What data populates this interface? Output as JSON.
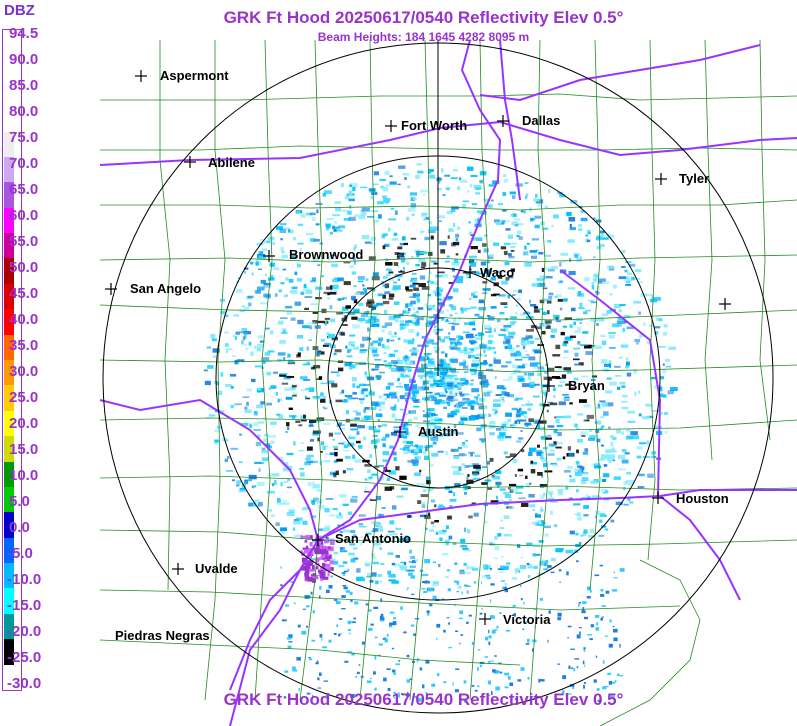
{
  "header": {
    "title": "GRK Ft Hood 20250617/0540 Reflectivity Elev 0.5°",
    "subtitle": "Beam Heights: 184 1645 4282 8095 m",
    "footer_title": "GRK Ft Hood 20250617/0540 Reflectivity Elev 0.5°"
  },
  "legend": {
    "unit": "DBZ",
    "ticks": [
      "94.5",
      "90.0",
      "85.0",
      "80.0",
      "75.0",
      "70.0",
      "65.0",
      "60.0",
      "55.0",
      "50.0",
      "45.0",
      "40.0",
      "35.0",
      "30.0",
      "25.0",
      "20.0",
      "15.0",
      "10.0",
      "5.0",
      "0.0",
      "-5.0",
      "-10.0",
      "-15.0",
      "-20.0",
      "-25.0",
      "-30.0"
    ],
    "colors": [
      "#ffffff",
      "#ffffff",
      "#ffffff",
      "#ffffff",
      "#eeeeee",
      "#cfa8f0",
      "#a855e0",
      "#ff00ff",
      "#cc0099",
      "#aa0000",
      "#dd0000",
      "#ff0000",
      "#ff6600",
      "#ff9900",
      "#ffcc00",
      "#ffff00",
      "#ccdd00",
      "#009900",
      "#00cc00",
      "#0000cc",
      "#0066ff",
      "#00bbff",
      "#00ffff",
      "#009999",
      "#000000",
      "#ffffff"
    ]
  },
  "cities": [
    {
      "name": "Aspermont"
    },
    {
      "name": "Fort Worth"
    },
    {
      "name": "Dallas"
    },
    {
      "name": "Abilene"
    },
    {
      "name": "Tyler"
    },
    {
      "name": "Brownwood"
    },
    {
      "name": "Waco"
    },
    {
      "name": "San Angelo"
    },
    {
      "name": "Bryan"
    },
    {
      "name": "Austin"
    },
    {
      "name": "Houston"
    },
    {
      "name": "San Antonio"
    },
    {
      "name": "Uvalde"
    },
    {
      "name": "Victoria"
    },
    {
      "name": "Piedras Negras"
    }
  ],
  "colors": {
    "title": "#9933cc",
    "counties": "#228b22",
    "highways": "#9933ff",
    "range_rings": "#000000"
  }
}
